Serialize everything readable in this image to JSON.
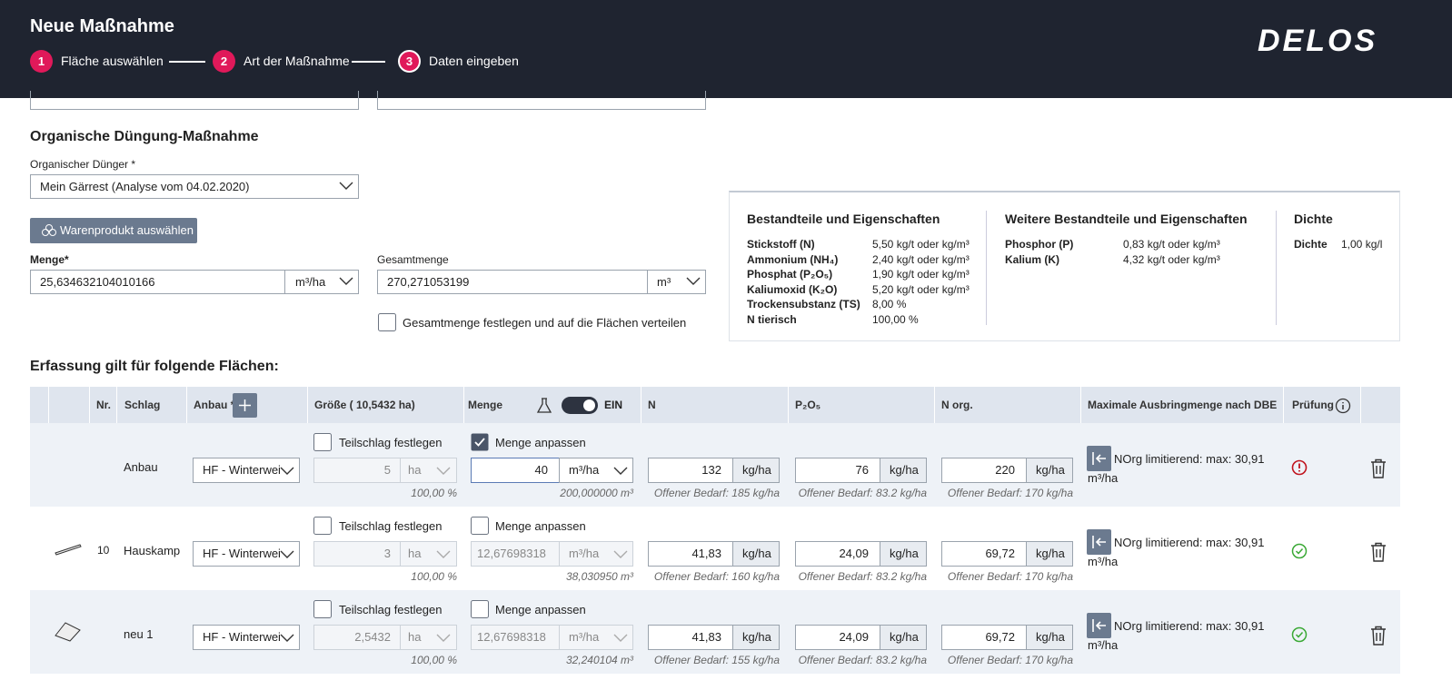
{
  "header": {
    "title": "Neue Maßnahme",
    "logo": "DELOS",
    "steps": [
      {
        "number": "1",
        "label": "Fläche auswählen"
      },
      {
        "number": "2",
        "label": "Art der Maßnahme"
      },
      {
        "number": "3",
        "label": "Daten eingeben"
      }
    ]
  },
  "form": {
    "section_title": "Organische Düngung-Maßnahme",
    "fertilizer_label": "Organischer Dünger *",
    "fertilizer_value": "Mein Gärrest (Analyse vom 04.02.2020)",
    "product_button": "Warenprodukt auswählen",
    "menge_label": "Menge*",
    "menge_value": "25,634632104010166",
    "menge_unit": "m³/ha",
    "total_label": "Gesamtmenge",
    "total_value": "270,271053199",
    "total_unit": "m³",
    "distribute_label": "Gesamtmenge festlegen und auf die Flächen verteilen"
  },
  "properties": [
    {
      "title": "Bestandteile und Eigenschaften",
      "rows": [
        [
          "Stickstoff (N)",
          "5,50 kg/t oder kg/m³"
        ],
        [
          "Ammonium (NH₄)",
          "2,40 kg/t oder kg/m³"
        ],
        [
          "Phosphat (P₂O₅)",
          "1,90 kg/t oder kg/m³"
        ],
        [
          "Kaliumoxid (K₂O)",
          "5,20 kg/t oder kg/m³"
        ],
        [
          "Trockensubstanz (TS)",
          "8,00 %"
        ],
        [
          "N tierisch",
          "100,00 %"
        ]
      ]
    },
    {
      "title": "Weitere Bestandteile und Eigenschaften",
      "rows": [
        [
          "Phosphor (P)",
          "0,83 kg/t oder kg/m³"
        ],
        [
          "Kalium (K)",
          "4,32 kg/t oder kg/m³"
        ]
      ]
    },
    {
      "title": "Dichte",
      "rows": [
        [
          "Dichte",
          "1,00 kg/l"
        ]
      ]
    }
  ],
  "table": {
    "title": "Erfassung gilt für folgende Flächen:",
    "columns": {
      "nr": "Nr.",
      "schlag": "Schlag",
      "anbau": "Anbau *",
      "size": "Größe ( 10,5432 ha)",
      "menge": "Menge",
      "toggle": "EIN",
      "n": "N",
      "p": "P₂O₅",
      "norg": "N org.",
      "max": "Maximale Ausbringmenge nach DBE",
      "check": "Prüfung"
    },
    "rows": [
      {
        "schlag": "Anbau",
        "anbau": "HF - Winterwei",
        "teilschlag": "Teilschlag festlegen",
        "size": "5",
        "size_unit": "ha",
        "size_percent": "100,00 %",
        "menge_check": "Menge anpassen",
        "menge_checked": true,
        "menge": "40",
        "menge_unit": "m³/ha",
        "menge_total": "200,000000 m³",
        "n": "132",
        "n_unit": "kg/ha",
        "n_bedarf": "Offener Bedarf: 185 kg/ha",
        "p": "76",
        "p_unit": "kg/ha",
        "p_bedarf": "Offener Bedarf: 83.2 kg/ha",
        "norg": "220",
        "norg_unit": "kg/ha",
        "norg_bedarf": "Offener Bedarf: 170 kg/ha",
        "max": "NOrg limitierend: max: 30,91 m³/ha",
        "status": "error"
      },
      {
        "nr": "10",
        "schlag": "Hauskamp",
        "anbau": "HF - Winterwei",
        "teilschlag": "Teilschlag festlegen",
        "size": "3",
        "size_unit": "ha",
        "size_percent": "100,00 %",
        "menge_check": "Menge anpassen",
        "menge_checked": false,
        "menge": "12,67698318",
        "menge_unit": "m³/ha",
        "menge_total": "38,030950 m³",
        "n": "41,83",
        "n_unit": "kg/ha",
        "n_bedarf": "Offener Bedarf: 160 kg/ha",
        "p": "24,09",
        "p_unit": "kg/ha",
        "p_bedarf": "Offener Bedarf: 83.2 kg/ha",
        "norg": "69,72",
        "norg_unit": "kg/ha",
        "norg_bedarf": "Offener Bedarf: 170 kg/ha",
        "max": "NOrg limitierend: max: 30,91 m³/ha",
        "status": "ok"
      },
      {
        "schlag": "neu 1",
        "anbau": "HF - Winterwei",
        "teilschlag": "Teilschlag festlegen",
        "size": "2,5432",
        "size_unit": "ha",
        "size_percent": "100,00 %",
        "menge_check": "Menge anpassen",
        "menge_checked": false,
        "menge": "12,67698318",
        "menge_unit": "m³/ha",
        "menge_total": "32,240104 m³",
        "n": "41,83",
        "n_unit": "kg/ha",
        "n_bedarf": "Offener Bedarf: 155 kg/ha",
        "p": "24,09",
        "p_unit": "kg/ha",
        "p_bedarf": "Offener Bedarf: 83.2 kg/ha",
        "norg": "69,72",
        "norg_unit": "kg/ha",
        "norg_bedarf": "Offener Bedarf: 170 kg/ha",
        "max": "NOrg limitierend: max: 30,91 m³/ha",
        "status": "ok"
      }
    ]
  }
}
